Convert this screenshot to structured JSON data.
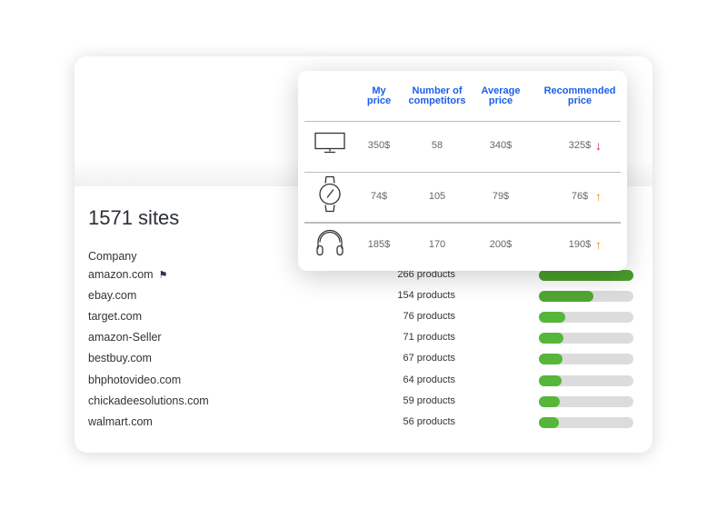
{
  "summary": {
    "title": "1571 sites",
    "column": "Company"
  },
  "sites": [
    {
      "name": "amazon.com",
      "flag": true,
      "products": "266 products",
      "share": 1.0,
      "color": "#4a9e2c"
    },
    {
      "name": "ebay.com",
      "products": "154 products",
      "share": 0.58,
      "color": "#4fa532"
    },
    {
      "name": "target.com",
      "products": "76 products",
      "share": 0.28,
      "color": "#56b63a"
    },
    {
      "name": "amazon-Seller",
      "products": "71 products",
      "share": 0.26,
      "color": "#56b63a"
    },
    {
      "name": "bestbuy.com",
      "products": "67 products",
      "share": 0.25,
      "color": "#56b63a"
    },
    {
      "name": "bhphotovideo.com",
      "products": "64 products",
      "share": 0.24,
      "color": "#56b63a"
    },
    {
      "name": "chickadeesolutions.com",
      "products": "59 products",
      "share": 0.22,
      "color": "#56b63a"
    },
    {
      "name": "walmart.com",
      "products": "56 products",
      "share": 0.21,
      "color": "#56b63a"
    }
  ],
  "pricing": {
    "headers": [
      "My\nprice",
      "Number of\ncompetitors",
      "Average\nprice",
      "Recommended\nprice"
    ],
    "rows": [
      {
        "icon": "monitor-icon",
        "my_price": "350$",
        "competitors": "58",
        "average": "340$",
        "recommended": "325$",
        "trend": "down",
        "trend_color": "#e8174a"
      },
      {
        "icon": "watch-icon",
        "my_price": "74$",
        "competitors": "105",
        "average": "79$",
        "recommended": "76$",
        "trend": "up",
        "trend_color": "#f58a1f"
      },
      {
        "icon": "headphones-icon",
        "my_price": "185$",
        "competitors": "170",
        "average": "200$",
        "recommended": "190$",
        "trend": "up",
        "trend_color": "#f58a1f"
      }
    ]
  }
}
